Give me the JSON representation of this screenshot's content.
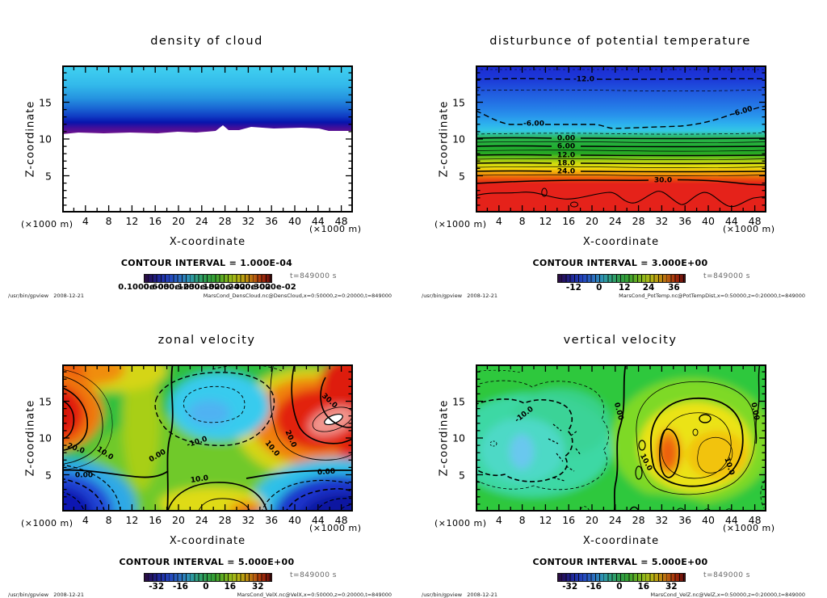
{
  "chart_data": [
    {
      "id": "density-of-cloud",
      "type": "heatmap",
      "title": "density of cloud",
      "xlabel": "X-coordinate",
      "ylabel": "Z-coordinate",
      "x_unit": "(×1000 m)",
      "y_unit": "(×1000 m)",
      "axes": {
        "xlim": [
          0,
          50
        ],
        "ylim": [
          0,
          20
        ],
        "x_minor": 2,
        "x_major": 4,
        "y_minor": 1,
        "y_major": 5
      },
      "x_ticks": [
        4,
        8,
        12,
        16,
        20,
        24,
        28,
        32,
        36,
        40,
        44,
        48
      ],
      "y_ticks": [
        5,
        10,
        15
      ],
      "contour_interval": "1.000E-04",
      "contour_interval_label": "CONTOUR INTERVAL = 1.000E-04",
      "time_label": "t=849000 s",
      "colorbar": {
        "labels": [
          "0.1000e-03",
          "0.6000e-03",
          "0.1200e-02",
          "0.1800e-02",
          "0.2400e-02",
          "0.3000e-02"
        ],
        "fracs": [
          0,
          0.2,
          0.4,
          0.6,
          0.8,
          1
        ]
      },
      "contour_labels": [],
      "footer_left": "/usr/bin/gpview   2008-12-21",
      "footer_right": "MarsCond_DensCloud.nc@DensCloud,x=0:50000,z=0:20000,t=849000",
      "summary": "Tone-fill only: light cyan cloud layer near z=20 deepening through blue to dark blue, thin purple cloud-base band at z≈11, white (no cloud) below z≈11."
    },
    {
      "id": "disturbance-of-potential-temperature",
      "type": "heatmap",
      "title": "disturbunce of potential temperature",
      "xlabel": "X-coordinate",
      "ylabel": "Z-coordinate",
      "x_unit": "(×1000 m)",
      "y_unit": "(×1000 m)",
      "axes": {
        "xlim": [
          0,
          50
        ],
        "ylim": [
          0,
          20
        ],
        "x_minor": 2,
        "x_major": 4,
        "y_minor": 1,
        "y_major": 5
      },
      "x_ticks": [
        4,
        8,
        12,
        16,
        20,
        24,
        28,
        32,
        36,
        40,
        44,
        48
      ],
      "y_ticks": [
        5,
        10,
        15
      ],
      "contour_interval": "3.000E+00",
      "contour_interval_label": "CONTOUR INTERVAL = 3.000E+00",
      "time_label": "t=849000 s",
      "colorbar": {
        "labels": [
          "-12",
          "0",
          "12",
          "24",
          "36"
        ],
        "fracs": [
          0.13,
          0.33,
          0.53,
          0.72,
          0.92
        ]
      },
      "contour_labels": [
        "-12.0",
        "-6.00",
        "-6.00",
        "0.00",
        "6.00",
        "12.0",
        "18.0",
        "24.0",
        "30.0"
      ],
      "footer_left": "/usr/bin/gpview   2008-12-21",
      "footer_right": "MarsCond_PotTemp.nc@PotTempDist,x=0:50000,z=0:20000,t=849000",
      "summary": "Horizontally stratified field: blue (≈-15) aloft, dashed negative contours above z≈10, tightly packed solid contours 0–30 between z≈10 and z≈5, red (>33) near surface."
    },
    {
      "id": "zonal-velocity",
      "type": "heatmap",
      "title": "zonal velocity",
      "xlabel": "X-coordinate",
      "ylabel": "Z-coordinate",
      "x_unit": "(×1000 m)",
      "y_unit": "(×1000 m)",
      "axes": {
        "xlim": [
          0,
          50
        ],
        "ylim": [
          0,
          20
        ],
        "x_minor": 2,
        "x_major": 4,
        "y_minor": 1,
        "y_major": 5
      },
      "x_ticks": [
        4,
        8,
        12,
        16,
        20,
        24,
        28,
        32,
        36,
        40,
        44,
        48
      ],
      "y_ticks": [
        5,
        10,
        15
      ],
      "contour_interval": "5.000E+00",
      "contour_interval_label": "CONTOUR INTERVAL = 5.000E+00",
      "time_label": "t=849000 s",
      "colorbar": {
        "labels": [
          "-32",
          "-16",
          "0",
          "16",
          "32"
        ],
        "fracs": [
          0.1,
          0.29,
          0.49,
          0.68,
          0.9
        ]
      },
      "contour_labels": [
        "20.0",
        "10.0",
        "0.00",
        "0.00",
        "-10.0",
        "10.0",
        "30.0",
        "20.0",
        "10.0",
        "0.00"
      ],
      "footer_left": "/usr/bin/gpview   2008-12-21",
      "footer_right": "MarsCond_VelX.nc@VelX,x=0:50000,z=0:20000,t=849000",
      "summary": "Wave pattern: strong westerly jets (red, >30) at left edge and x≈45 near z≈12, easterly cells (dark blue, <-20) in bottom corners, weak easterly (cyan, ≈-15) aloft at x≈20, green ≈0–5 background."
    },
    {
      "id": "vertical-velocity",
      "type": "heatmap",
      "title": "vertical velocity",
      "xlabel": "X-coordinate",
      "ylabel": "Z-coordinate",
      "x_unit": "(×1000 m)",
      "y_unit": "(×1000 m)",
      "axes": {
        "xlim": [
          0,
          50
        ],
        "ylim": [
          0,
          20
        ],
        "x_minor": 2,
        "x_major": 4,
        "y_minor": 1,
        "y_major": 5
      },
      "x_ticks": [
        4,
        8,
        12,
        16,
        20,
        24,
        28,
        32,
        36,
        40,
        44,
        48
      ],
      "y_ticks": [
        5,
        10,
        15
      ],
      "contour_interval": "5.000E+00",
      "contour_interval_label": "CONTOUR INTERVAL = 5.000E+00",
      "time_label": "t=849000 s",
      "colorbar": {
        "labels": [
          "-32",
          "-16",
          "0",
          "16",
          "32"
        ],
        "fracs": [
          0.1,
          0.29,
          0.49,
          0.68,
          0.9
        ]
      },
      "contour_labels": [
        "-10.0",
        "0.00",
        "10.0",
        "10.0",
        "0.00"
      ],
      "footer_left": "/usr/bin/gpview   2008-12-21",
      "footer_right": "MarsCond_VelZ.nc@VelZ,x=0:50000,z=0:20000,t=849000",
      "summary": "Downdraft region (teal/cyan, ≈-12, dashed contours) over x≈0–22; updraft cell (orange core ≈25 at x≈32, z≈7 with yellow lobe to x≈42) enclosed by solid 10 contour; green ≈0 elsewhere."
    }
  ]
}
